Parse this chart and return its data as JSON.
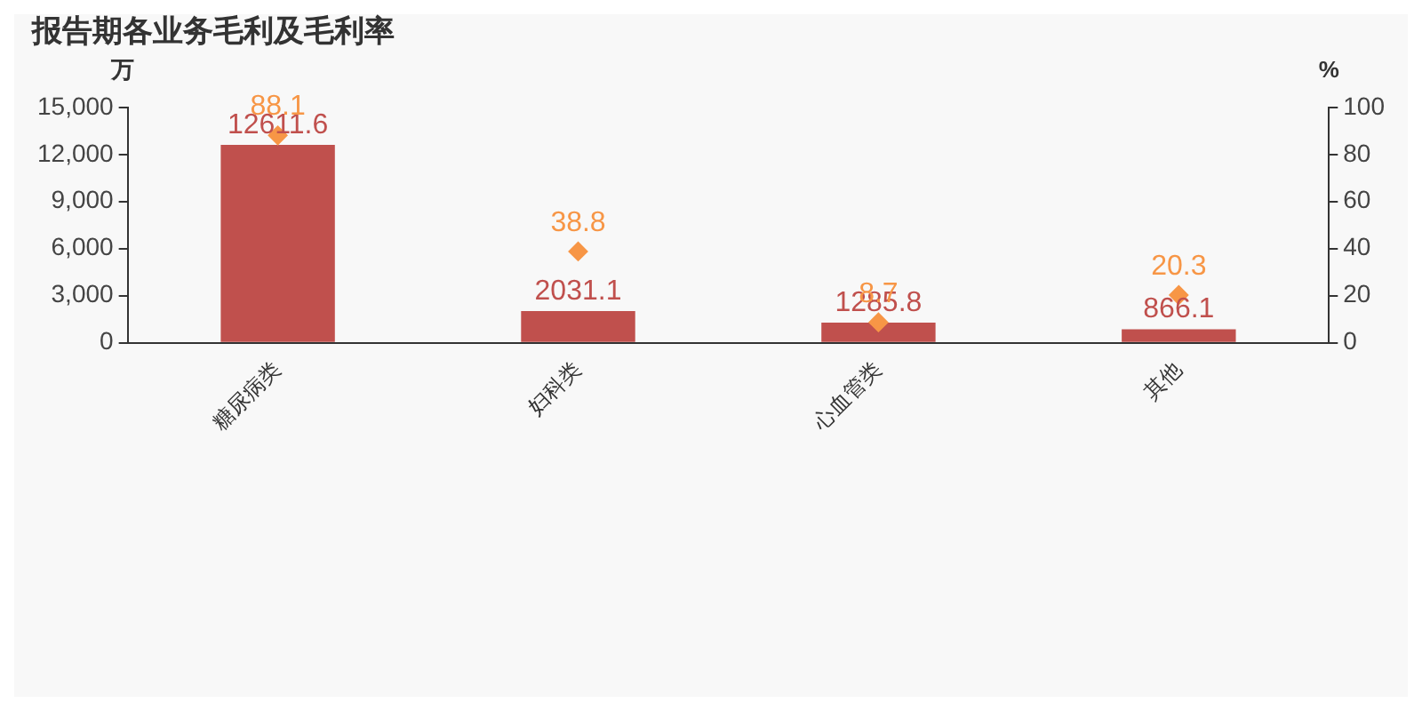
{
  "chart_data": {
    "type": "bar",
    "title": "报告期各业务毛利及毛利率",
    "ylabel": "万",
    "y2label": "%",
    "categories": [
      "糖尿病类",
      "妇科类",
      "心血管类",
      "其他"
    ],
    "series": [
      {
        "color": "#c0504d",
        "values": [
          12611.6,
          2031.1,
          1285.8,
          866.1
        ]
      },
      {
        "type": "scatter",
        "axis": "y2",
        "color": "#f79646",
        "marker": "diamond",
        "x": [
          "糖尿病类",
          "妇科类",
          "心血管类",
          "其他"
        ],
        "values": [
          88.1,
          38.8,
          8.7,
          20.3
        ]
      }
    ],
    "ylim": [
      0,
      15000
    ],
    "yticks": [
      0,
      {
        "value": 3000,
        "label": "3,000"
      },
      {
        "value": 6000,
        "label": "6,000"
      },
      {
        "value": 9000,
        "label": "9,000"
      },
      {
        "value": 12000,
        "label": "12,000"
      },
      {
        "value": 15000,
        "label": "15,000"
      }
    ],
    "y2lim": [
      0,
      100
    ],
    "y2ticks": [
      0,
      20,
      40,
      60,
      80,
      100
    ],
    "grid": false,
    "legend": false,
    "data_labels": true
  }
}
